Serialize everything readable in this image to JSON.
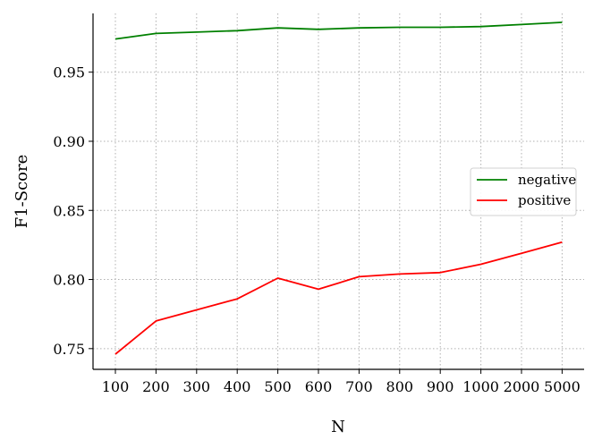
{
  "chart_data": {
    "type": "line",
    "xlabel": "N",
    "ylabel": "F1-Score",
    "categories": [
      "100",
      "200",
      "300",
      "400",
      "500",
      "600",
      "700",
      "800",
      "900",
      "1000",
      "2000",
      "5000"
    ],
    "ylim": [
      0.735,
      0.9925
    ],
    "yticks": [
      0.75,
      0.8,
      0.85,
      0.9,
      0.95
    ],
    "ytick_labels": [
      "0.75",
      "0.80",
      "0.85",
      "0.90",
      "0.95"
    ],
    "grid": true,
    "legend_position": "center-right",
    "series": [
      {
        "name": "negative",
        "color": "#008000",
        "values": [
          0.974,
          0.978,
          0.979,
          0.98,
          0.982,
          0.981,
          0.982,
          0.9825,
          0.9825,
          0.983,
          0.9845,
          0.986
        ]
      },
      {
        "name": "positive",
        "color": "#ff0000",
        "values": [
          0.746,
          0.77,
          0.778,
          0.786,
          0.801,
          0.793,
          0.802,
          0.804,
          0.805,
          0.811,
          0.819,
          0.827
        ]
      }
    ]
  }
}
